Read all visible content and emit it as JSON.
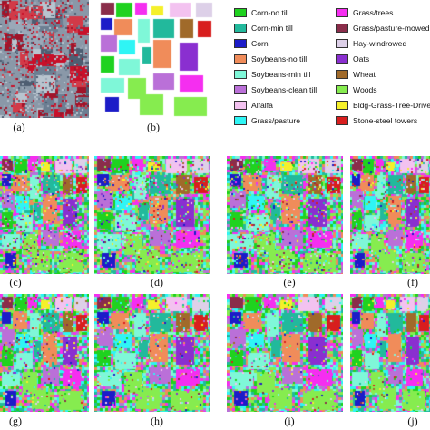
{
  "figure": {
    "panel_labels": [
      "(a)",
      "(b)",
      "(c)",
      "(d)",
      "(e)",
      "(f)",
      "(g)",
      "(h)",
      "(i)",
      "(j)"
    ]
  },
  "legend": {
    "items": [
      {
        "label": "Corn-no till",
        "color": "#1fd21f"
      },
      {
        "label": "Corn-min till",
        "color": "#22b99c"
      },
      {
        "label": "Corn",
        "color": "#1c1cc8"
      },
      {
        "label": "Soybeans-no till",
        "color": "#f08c5a"
      },
      {
        "label": "Soybeans-min till",
        "color": "#7ff7d8"
      },
      {
        "label": "Soybeans-clean till",
        "color": "#ba70d8"
      },
      {
        "label": "Alfalfa",
        "color": "#f3c2f0"
      },
      {
        "label": "Grass/pasture",
        "color": "#2ff5f5"
      },
      {
        "label": "Grass/trees",
        "color": "#f52ef0"
      },
      {
        "label": "Grass/pasture-mowed",
        "color": "#8a2d4a"
      },
      {
        "label": "Hay-windrowed",
        "color": "#ddd0e8"
      },
      {
        "label": "Oats",
        "color": "#8a2fd0"
      },
      {
        "label": "Wheat",
        "color": "#a06a2a"
      },
      {
        "label": "Woods",
        "color": "#86ec4f"
      },
      {
        "label": "Bldg-Grass-Tree-Drives",
        "color": "#f5f02a"
      },
      {
        "label": "Stone-steel towers",
        "color": "#d81e1e"
      }
    ]
  }
}
